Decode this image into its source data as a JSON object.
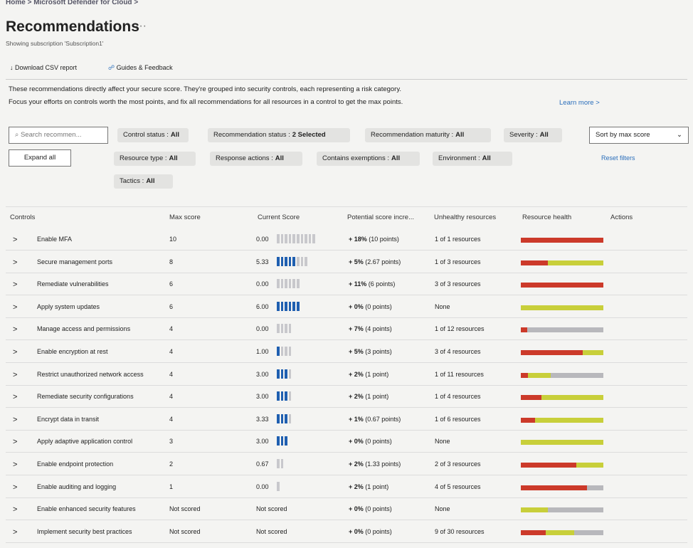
{
  "breadcrumb": [
    "Home",
    "Microsoft Defender for Cloud"
  ],
  "header": {
    "title": "Recommendations",
    "subtitle": "Showing subscription 'Subscription1'"
  },
  "toolbar": [
    "Download CSV report",
    "Guides & Feedback"
  ],
  "description": [
    "These recommendations directly affect your secure score. They're grouped into security controls, each representing a risk category.",
    "Focus your efforts on controls worth the most points, and fix all recommendations for all resources in a control to get the max points."
  ],
  "learn_more": "Learn more >",
  "search_placeholder": "Search recommen...",
  "expand_all": "Expand all",
  "filters": [
    {
      "label": "Control status :",
      "value": "All"
    },
    {
      "label": "Recommendation status :",
      "value": "2 Selected"
    },
    {
      "label": "Recommendation maturity :",
      "value": "All"
    },
    {
      "label": "Severity :",
      "value": "All"
    },
    {
      "label": "Resource type :",
      "value": "All"
    },
    {
      "label": "Response actions :",
      "value": "All"
    },
    {
      "label": "Contains exemptions :",
      "value": "All"
    },
    {
      "label": "Environment :",
      "value": "All"
    },
    {
      "label": "Tactics :",
      "value": "All"
    }
  ],
  "sort": "Sort by max score",
  "reset_filters": "Reset filters",
  "table": {
    "columns": [
      "Controls",
      "Max score",
      "Current Score",
      "Potential score incre...",
      "Unhealthy resources",
      "Resource health",
      "Actions"
    ],
    "rows": [
      {
        "name": "Enable MFA",
        "max_score": 10,
        "current_score": "0.00",
        "increase": "+ 18%",
        "points": "(10 points)",
        "unhealthy": "1 of 1 resources",
        "health": [
          100,
          0,
          0
        ]
      },
      {
        "name": "Secure management ports",
        "max_score": 8,
        "current_score": "5.33",
        "increase": "+ 5%",
        "points": "(2.67 points)",
        "unhealthy": "1 of 3 resources",
        "health": [
          33,
          67,
          0
        ]
      },
      {
        "name": "Remediate vulnerabilities",
        "max_score": 6,
        "current_score": "0.00",
        "increase": "+ 11%",
        "points": "(6 points)",
        "unhealthy": "3 of 3 resources",
        "health": [
          100,
          0,
          0
        ]
      },
      {
        "name": "Apply system updates",
        "max_score": 6,
        "current_score": "6.00",
        "increase": "+ 0%",
        "points": "(0 points)",
        "unhealthy": "None",
        "health": [
          0,
          100,
          0
        ]
      },
      {
        "name": "Manage access and permissions",
        "max_score": 4,
        "current_score": "0.00",
        "increase": "+ 7%",
        "points": "(4 points)",
        "unhealthy": "1 of 12 resources",
        "health": [
          8,
          0,
          92
        ]
      },
      {
        "name": "Enable encryption at rest",
        "max_score": 4,
        "current_score": "1.00",
        "increase": "+ 5%",
        "points": "(3 points)",
        "unhealthy": "3 of 4 resources",
        "health": [
          75,
          25,
          0
        ]
      },
      {
        "name": "Restrict unauthorized network access",
        "max_score": 4,
        "current_score": "3.00",
        "increase": "+ 2%",
        "points": "(1 point)",
        "unhealthy": "1 of 11 resources",
        "health": [
          9,
          27,
          64
        ]
      },
      {
        "name": "Remediate security configurations",
        "max_score": 4,
        "current_score": "3.00",
        "increase": "+ 2%",
        "points": "(1 point)",
        "unhealthy": "1 of 4 resources",
        "health": [
          25,
          75,
          0
        ]
      },
      {
        "name": "Encrypt data in transit",
        "max_score": 4,
        "current_score": "3.33",
        "increase": "+ 1%",
        "points": "(0.67 points)",
        "unhealthy": "1 of 6 resources",
        "health": [
          17,
          83,
          0
        ]
      },
      {
        "name": "Apply adaptive application control",
        "max_score": 3,
        "current_score": "3.00",
        "increase": "+ 0%",
        "points": "(0 points)",
        "unhealthy": "None",
        "health": [
          0,
          100,
          0
        ]
      },
      {
        "name": "Enable endpoint protection",
        "max_score": 2,
        "current_score": "0.67",
        "increase": "+ 2%",
        "points": "(1.33 points)",
        "unhealthy": "2 of 3 resources",
        "health": [
          67,
          33,
          0
        ]
      },
      {
        "name": "Enable auditing and logging",
        "max_score": 1,
        "current_score": "0.00",
        "increase": "+ 2%",
        "points": "(1 point)",
        "unhealthy": "4 of 5 resources",
        "health": [
          80,
          0,
          20
        ]
      },
      {
        "name": "Enable enhanced security features",
        "max_score": "Not scored",
        "current_score": "Not scored",
        "increase": "+ 0%",
        "points": "(0 points)",
        "unhealthy": "None",
        "health": [
          0,
          33,
          67
        ]
      },
      {
        "name": "Implement security best practices",
        "max_score": "Not scored",
        "current_score": "Not scored",
        "increase": "+ 0%",
        "points": "(0 points)",
        "unhealthy": "9 of 30 resources",
        "health": [
          30,
          35,
          35
        ]
      }
    ]
  }
}
